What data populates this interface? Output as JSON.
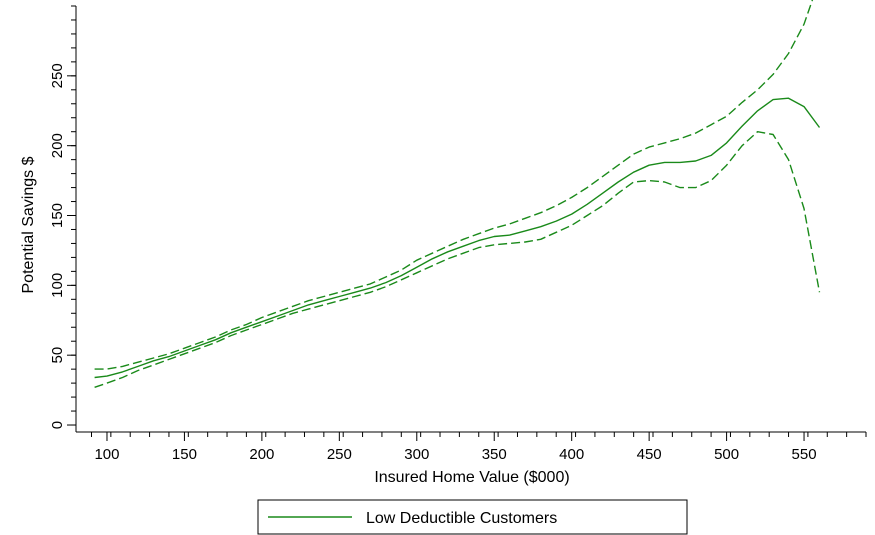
{
  "chart_data": {
    "type": "line",
    "xlabel": "Insured Home Value ($000)",
    "ylabel": "Potential Savings $",
    "xlim": [
      80,
      590
    ],
    "ylim": [
      -5,
      300
    ],
    "x_ticks": [
      100,
      150,
      200,
      250,
      300,
      350,
      400,
      450,
      500,
      550
    ],
    "x_tick_labels": [
      "100",
      "150",
      "200",
      "250",
      "300",
      "350",
      "400",
      "450",
      "500",
      "550"
    ],
    "x_minor_step": 12.5,
    "y_ticks": [
      0,
      50,
      100,
      150,
      200,
      250
    ],
    "y_tick_labels": [
      "0",
      "50",
      "100",
      "150",
      "200",
      "250"
    ],
    "y_minor_step": 10,
    "grid": false,
    "legend": {
      "position": "bottom-center",
      "entries": [
        "Low Deductible Customers"
      ]
    },
    "color": "#1a8a1a",
    "series": [
      {
        "name": "Low Deductible Customers",
        "style": "solid",
        "x": [
          92,
          100,
          110,
          120,
          130,
          140,
          150,
          160,
          170,
          180,
          190,
          200,
          210,
          220,
          230,
          240,
          250,
          260,
          270,
          280,
          290,
          300,
          310,
          320,
          330,
          340,
          350,
          360,
          370,
          380,
          390,
          400,
          410,
          420,
          430,
          440,
          450,
          460,
          470,
          480,
          490,
          500,
          510,
          520,
          530,
          540,
          550,
          560
        ],
        "y": [
          34,
          35,
          38,
          42,
          46,
          49,
          53,
          57,
          61,
          66,
          70,
          74,
          78,
          82,
          86,
          89,
          92,
          95,
          98,
          102,
          107,
          113,
          119,
          124,
          128,
          132,
          135,
          136,
          139,
          142,
          146,
          151,
          158,
          166,
          174,
          181,
          186,
          188,
          188,
          189,
          193,
          202,
          214,
          225,
          233,
          234,
          228,
          213
        ]
      },
      {
        "name": "",
        "style": "dashed",
        "x": [
          92,
          100,
          110,
          120,
          130,
          140,
          150,
          160,
          170,
          180,
          190,
          200,
          210,
          220,
          230,
          240,
          250,
          260,
          270,
          280,
          290,
          300,
          310,
          320,
          330,
          340,
          350,
          360,
          370,
          380,
          390,
          400,
          410,
          420,
          430,
          440,
          450,
          460,
          470,
          480,
          490,
          500,
          510,
          520,
          530,
          540,
          550,
          560
        ],
        "y": [
          40,
          40,
          42,
          45,
          48,
          51,
          55,
          59,
          63,
          68,
          72,
          77,
          81,
          85,
          89,
          92,
          95,
          98,
          101,
          106,
          111,
          118,
          123,
          128,
          133,
          137,
          141,
          144,
          148,
          152,
          157,
          163,
          170,
          178,
          186,
          194,
          199,
          202,
          205,
          209,
          215,
          221,
          231,
          240,
          251,
          266,
          287,
          319
        ]
      },
      {
        "name": "",
        "style": "dashed",
        "x": [
          92,
          100,
          110,
          120,
          130,
          140,
          150,
          160,
          170,
          180,
          190,
          200,
          210,
          220,
          230,
          240,
          250,
          260,
          270,
          280,
          290,
          300,
          310,
          320,
          330,
          340,
          350,
          360,
          370,
          380,
          390,
          400,
          410,
          420,
          430,
          440,
          450,
          460,
          470,
          480,
          490,
          500,
          510,
          520,
          530,
          540,
          550,
          560
        ],
        "y": [
          27,
          30,
          34,
          39,
          43,
          47,
          51,
          55,
          59,
          64,
          68,
          72,
          76,
          80,
          83,
          86,
          89,
          92,
          95,
          99,
          104,
          109,
          114,
          119,
          123,
          127,
          129,
          130,
          131,
          133,
          138,
          143,
          150,
          157,
          166,
          174,
          175,
          174,
          170,
          170,
          175,
          186,
          200,
          210,
          208,
          190,
          155,
          95
        ]
      }
    ]
  }
}
